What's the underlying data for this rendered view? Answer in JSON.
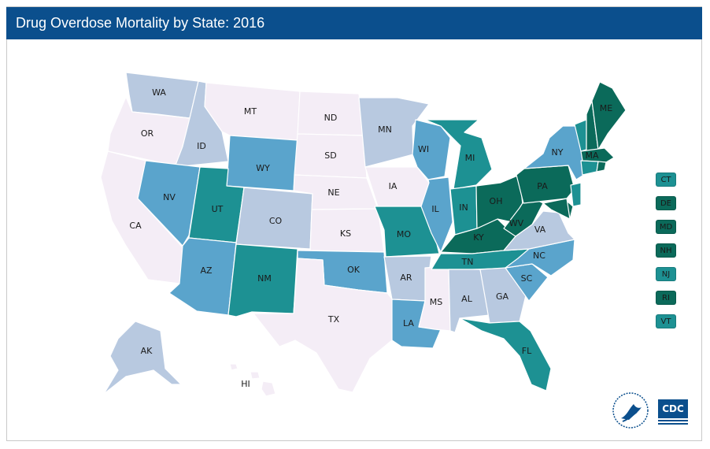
{
  "title": "Drug Overdose Mortality by State: 2016",
  "colors": {
    "title_bg": "#0b4f8d",
    "level1": "#f4edf6",
    "level2": "#b8c9e0",
    "level3": "#5aa4cc",
    "level4": "#1d9193",
    "level5": "#0b6a5a",
    "border": "#ffffff"
  },
  "states": [
    {
      "abbr": "WA",
      "level": 2
    },
    {
      "abbr": "OR",
      "level": 1
    },
    {
      "abbr": "CA",
      "level": 1
    },
    {
      "abbr": "ID",
      "level": 2
    },
    {
      "abbr": "NV",
      "level": 3
    },
    {
      "abbr": "MT",
      "level": 1
    },
    {
      "abbr": "WY",
      "level": 3
    },
    {
      "abbr": "UT",
      "level": 4
    },
    {
      "abbr": "AZ",
      "level": 3
    },
    {
      "abbr": "CO",
      "level": 2
    },
    {
      "abbr": "NM",
      "level": 4
    },
    {
      "abbr": "ND",
      "level": 1
    },
    {
      "abbr": "SD",
      "level": 1
    },
    {
      "abbr": "NE",
      "level": 1
    },
    {
      "abbr": "KS",
      "level": 1
    },
    {
      "abbr": "OK",
      "level": 3
    },
    {
      "abbr": "TX",
      "level": 1
    },
    {
      "abbr": "MN",
      "level": 2
    },
    {
      "abbr": "IA",
      "level": 1
    },
    {
      "abbr": "MO",
      "level": 4
    },
    {
      "abbr": "AR",
      "level": 2
    },
    {
      "abbr": "LA",
      "level": 3
    },
    {
      "abbr": "WI",
      "level": 3
    },
    {
      "abbr": "IL",
      "level": 3
    },
    {
      "abbr": "MS",
      "level": 1
    },
    {
      "abbr": "MI",
      "level": 4
    },
    {
      "abbr": "IN",
      "level": 4
    },
    {
      "abbr": "KY",
      "level": 5
    },
    {
      "abbr": "TN",
      "level": 4
    },
    {
      "abbr": "AL",
      "level": 2
    },
    {
      "abbr": "OH",
      "level": 5
    },
    {
      "abbr": "WV",
      "level": 5
    },
    {
      "abbr": "GA",
      "level": 2
    },
    {
      "abbr": "FL",
      "level": 4
    },
    {
      "abbr": "SC",
      "level": 3
    },
    {
      "abbr": "NC",
      "level": 3
    },
    {
      "abbr": "VA",
      "level": 2
    },
    {
      "abbr": "PA",
      "level": 5
    },
    {
      "abbr": "NY",
      "level": 3
    },
    {
      "abbr": "ME",
      "level": 5
    },
    {
      "abbr": "MA",
      "level": 5
    },
    {
      "abbr": "AK",
      "level": 2
    },
    {
      "abbr": "HI",
      "level": 1
    }
  ],
  "legend": [
    {
      "abbr": "CT",
      "level": 4
    },
    {
      "abbr": "DE",
      "level": 5
    },
    {
      "abbr": "MD",
      "level": 5
    },
    {
      "abbr": "NH",
      "level": 5
    },
    {
      "abbr": "NJ",
      "level": 4
    },
    {
      "abbr": "RI",
      "level": 5
    },
    {
      "abbr": "VT",
      "level": 4
    }
  ],
  "logos": {
    "cdc": "CDC",
    "hhs": "hhs-seal"
  }
}
